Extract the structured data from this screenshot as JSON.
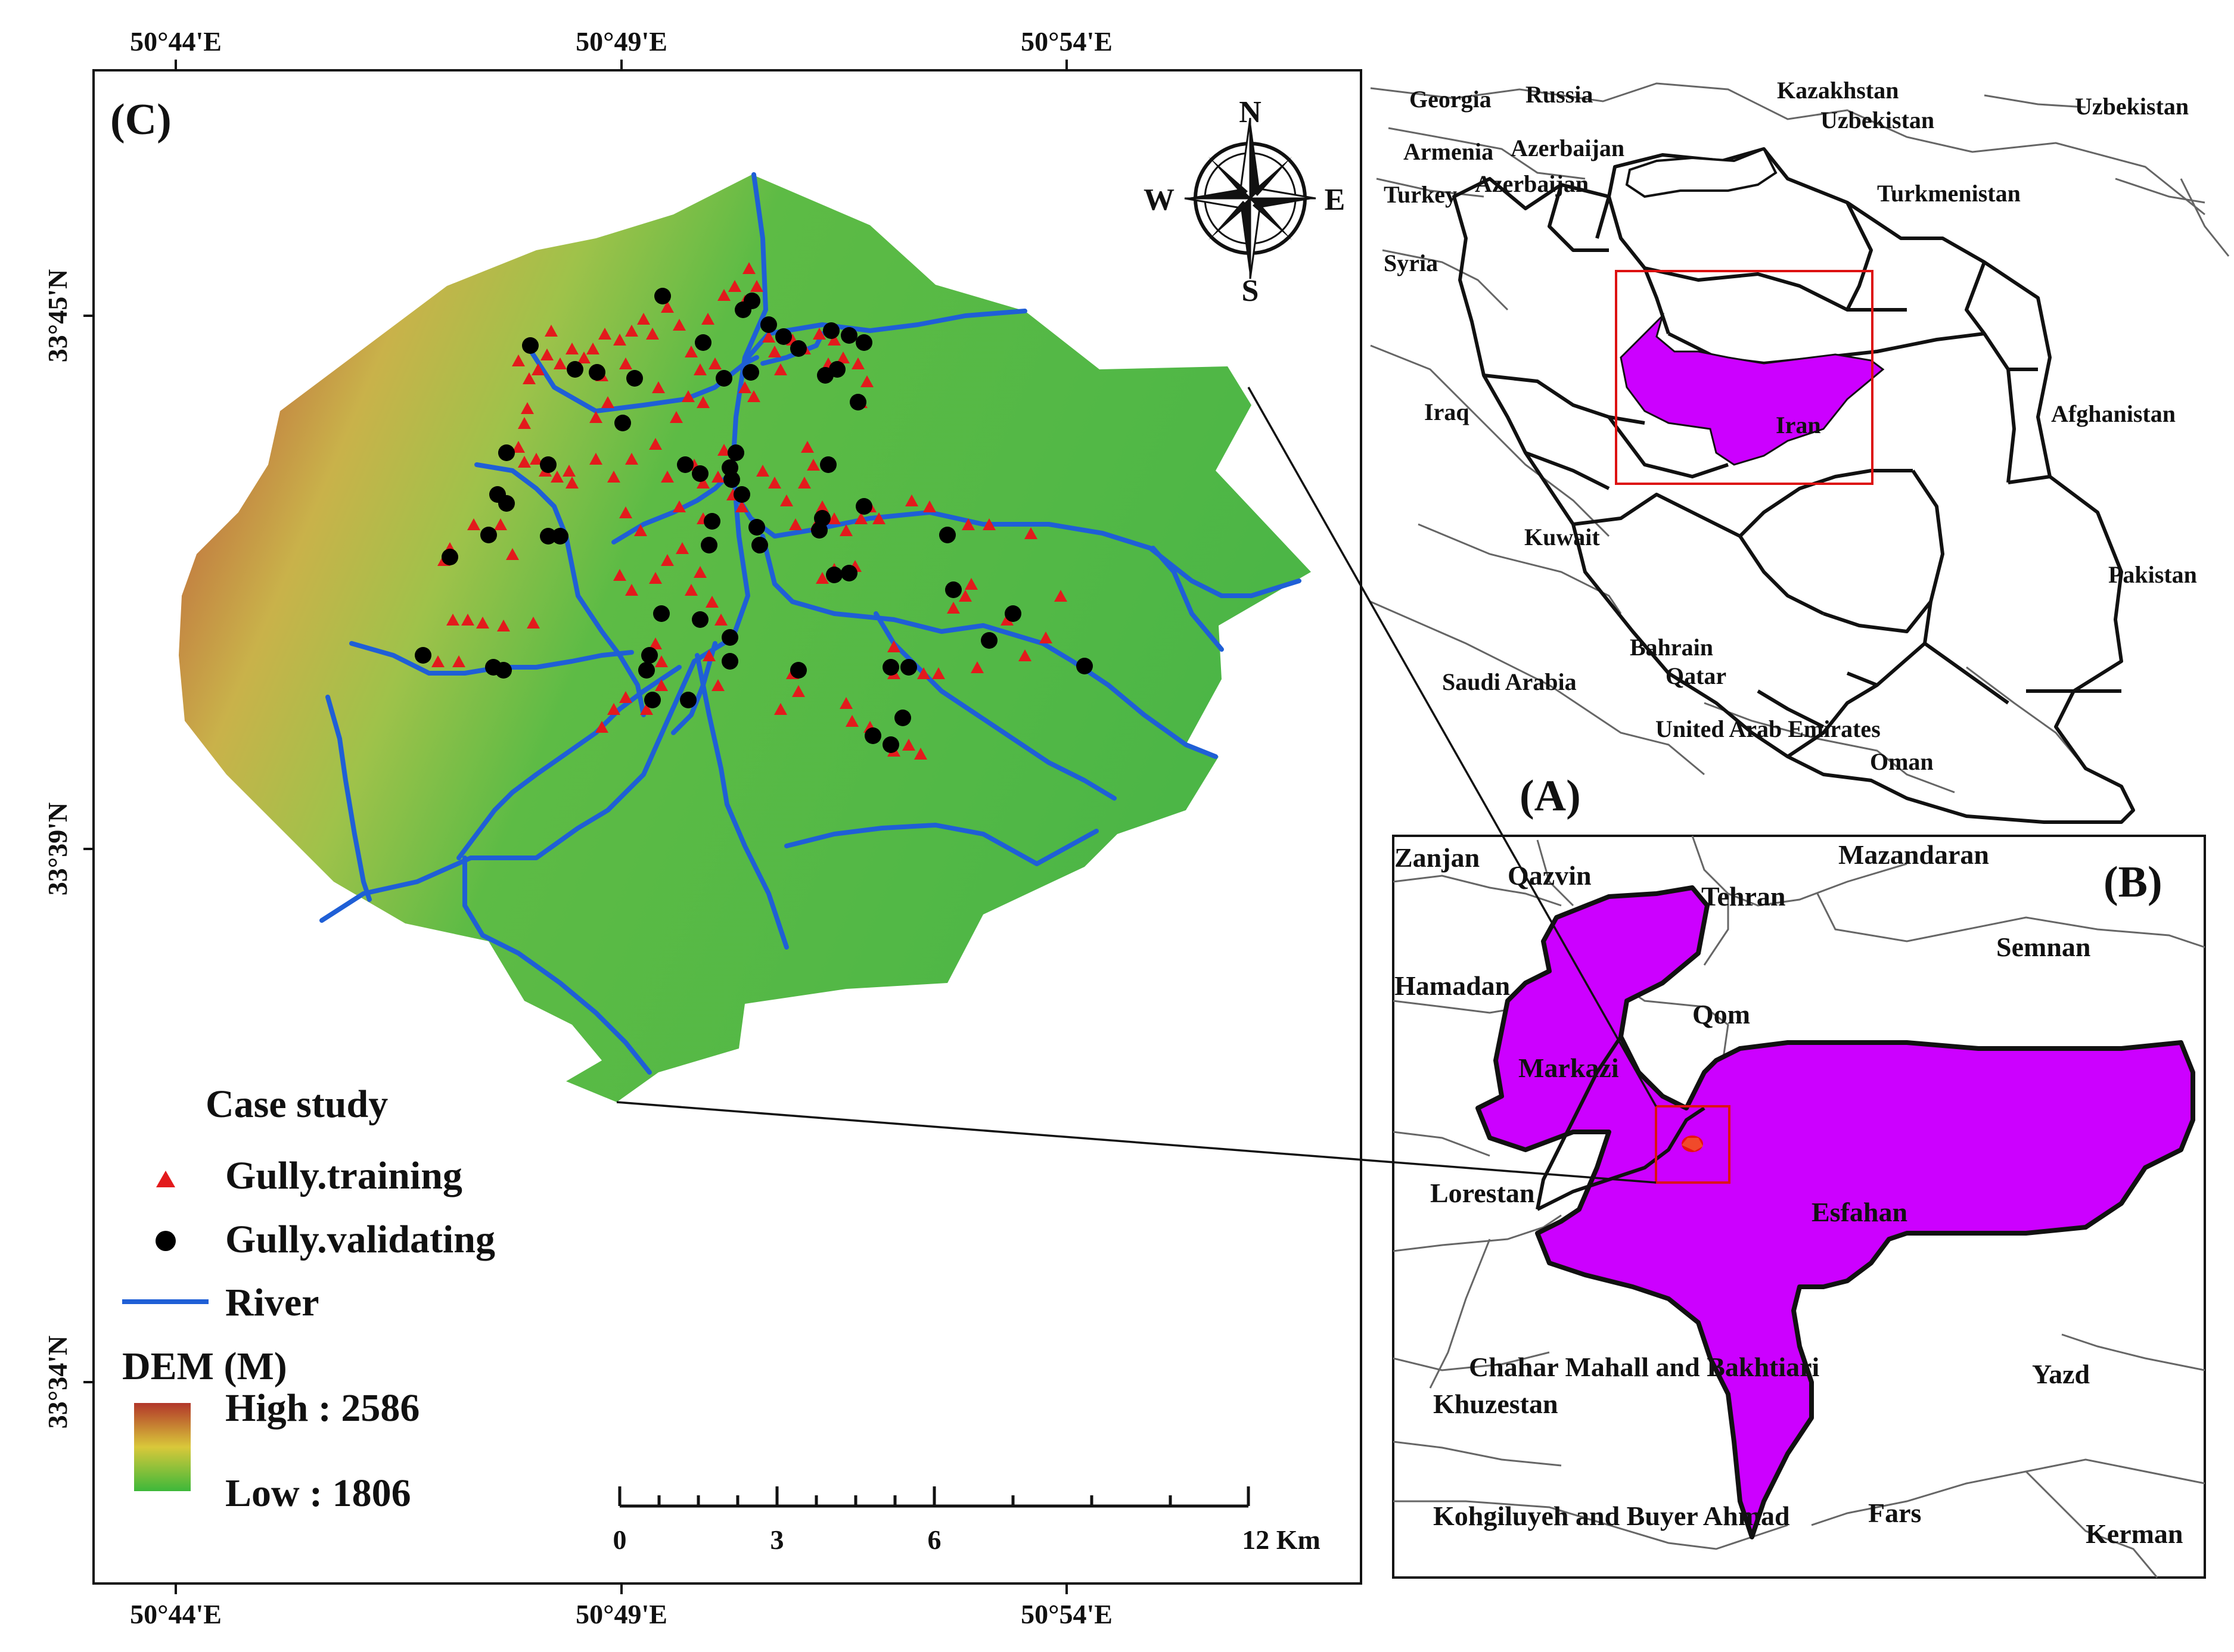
{
  "panels": {
    "c": "(C)",
    "a": "(A)",
    "b": "(B)"
  },
  "coords": {
    "top": [
      "50°44'E",
      "50°49'E",
      "50°54'E"
    ],
    "bottom": [
      "50°44'E",
      "50°49'E",
      "50°54'E"
    ],
    "left": [
      "33°45'N",
      "33°39'N",
      "33°34'N"
    ]
  },
  "compass": {
    "n": "N",
    "s": "S",
    "e": "E",
    "w": "W"
  },
  "legend": {
    "title": "Case study",
    "training": "Gully.training",
    "validating": "Gully.validating",
    "river": "River",
    "dem_title": "DEM (M)",
    "dem_high": "High : 2586",
    "dem_low": "Low : 1806"
  },
  "scale_bar": {
    "labels": [
      "0",
      "3",
      "6",
      "12 Km"
    ]
  },
  "countries": [
    {
      "name": "Georgia"
    },
    {
      "name": "Russia"
    },
    {
      "name": "Kazakhstan"
    },
    {
      "name": "Uzbekistan"
    },
    {
      "name": "Uzbekistan"
    },
    {
      "name": "Armenia"
    },
    {
      "name": "Azerbaijan"
    },
    {
      "name": "Azerbaijan"
    },
    {
      "name": "Turkey"
    },
    {
      "name": "Turkmenistan"
    },
    {
      "name": "Syria"
    },
    {
      "name": "Iraq"
    },
    {
      "name": "Iran"
    },
    {
      "name": "Afghanistan"
    },
    {
      "name": "Kuwait"
    },
    {
      "name": "Pakistan"
    },
    {
      "name": "Bahrain"
    },
    {
      "name": "Qatar"
    },
    {
      "name": "Saudi Arabia"
    },
    {
      "name": "United Arab Emirates"
    },
    {
      "name": "Oman"
    }
  ],
  "provinces": [
    {
      "name": "Zanjan"
    },
    {
      "name": "Qazvin"
    },
    {
      "name": "Tehran"
    },
    {
      "name": "Mazandaran"
    },
    {
      "name": "Semnan"
    },
    {
      "name": "Hamadan"
    },
    {
      "name": "Qom"
    },
    {
      "name": "Markazi"
    },
    {
      "name": "Lorestan"
    },
    {
      "name": "Esfahan"
    },
    {
      "name": "Chahar Mahall and Bakhtiari"
    },
    {
      "name": "Khuzestan"
    },
    {
      "name": "Yazd"
    },
    {
      "name": "Kohgiluyeh and Buyer Ahmad"
    },
    {
      "name": "Fars"
    },
    {
      "name": "Kerman"
    }
  ],
  "colors": {
    "training": "#e31a1c",
    "validating": "#000000",
    "river": "#1f5fd6",
    "dem_high": "#b2362a",
    "dem_mid": "#d9c83a",
    "dem_low": "#3db83a",
    "province_fill": "#cc00ff",
    "study_area": "#e81010"
  }
}
